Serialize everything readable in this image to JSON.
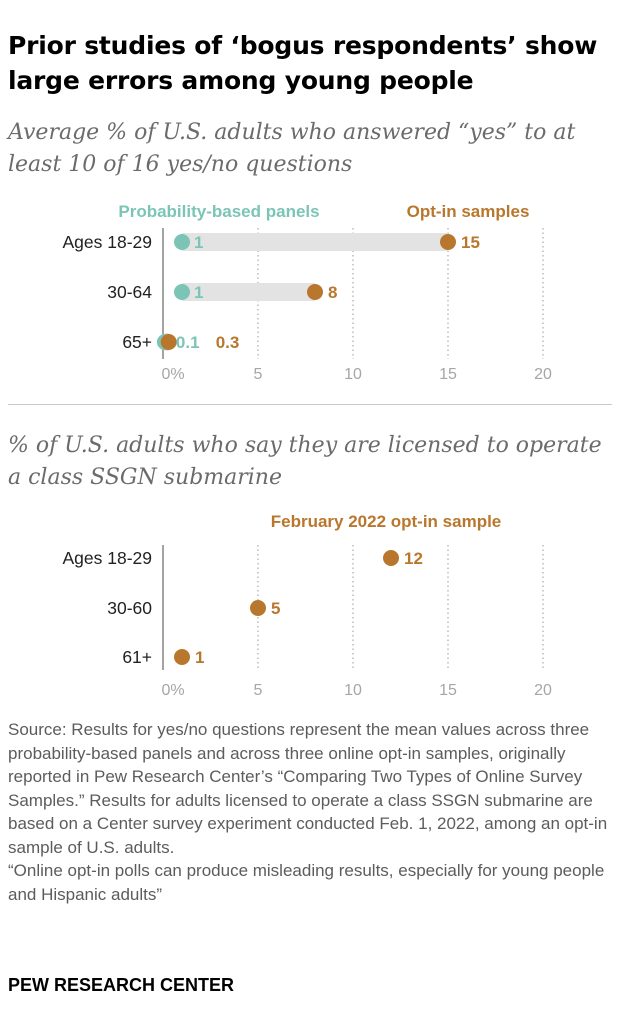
{
  "title": "Prior studies of ‘bogus respondents’ show large errors among young people",
  "colors": {
    "probability": "#7cc5b6",
    "optin": "#b9772e",
    "track": "#e3e3e3",
    "axis": "#666666",
    "grid": "#9a9a9a",
    "ticklabel": "#a6a6a6"
  },
  "chart_data": [
    {
      "type": "dot",
      "title": "Average % of U.S. adults who answered “yes” to at least 10 of 16 yes/no questions",
      "categories": [
        "Ages 18-29",
        "30-64",
        "65+"
      ],
      "series": [
        {
          "name": "Probability-based panels",
          "values": [
            1,
            1,
            0.1
          ],
          "labels": [
            "1",
            "1",
            "0.1"
          ]
        },
        {
          "name": "Opt-in samples",
          "values": [
            15,
            8,
            0.3
          ],
          "labels": [
            "15",
            "8",
            "0.3"
          ]
        }
      ],
      "xlim": [
        0,
        20
      ],
      "xticks": [
        0,
        5,
        10,
        15,
        20
      ],
      "xticklabels": [
        "0%",
        "5",
        "10",
        "15",
        "20"
      ],
      "grid": true
    },
    {
      "type": "dot",
      "title": "% of U.S. adults who say they are licensed to operate a class SSGN submarine",
      "categories": [
        "Ages 18-29",
        "30-60",
        "61+"
      ],
      "series": [
        {
          "name": "February 2022 opt-in sample",
          "values": [
            12,
            5,
            1
          ],
          "labels": [
            "12",
            "5",
            "1"
          ]
        }
      ],
      "xlim": [
        0,
        20
      ],
      "xticks": [
        0,
        5,
        10,
        15,
        20
      ],
      "xticklabels": [
        "0%",
        "5",
        "10",
        "15",
        "20"
      ],
      "grid": true
    }
  ],
  "source_lines": [
    "Source: Results for yes/no questions represent the mean values across three probability-based panels and across three online opt-in samples, originally reported in Pew Research Center’s “Comparing Two Types of Online Survey Samples.” Results for adults licensed to operate a class SSGN submarine are based on a Center survey experiment conducted Feb. 1, 2022, among an opt-in sample of U.S. adults.",
    "“Online opt-in polls can produce misleading results, especially for young people and Hispanic adults”"
  ],
  "brand": "PEW RESEARCH CENTER"
}
